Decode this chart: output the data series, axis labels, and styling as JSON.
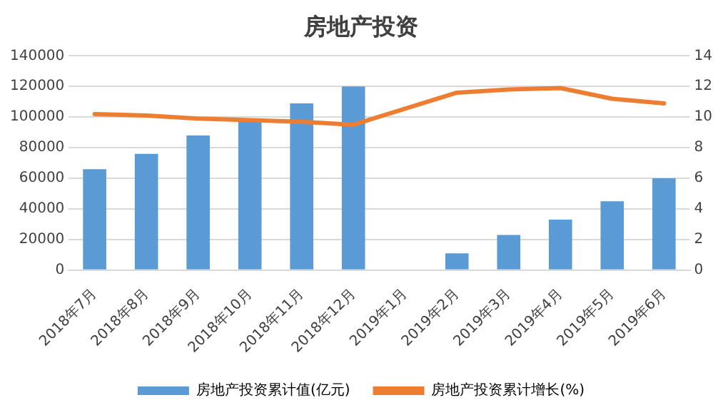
{
  "chart_data": {
    "type": "bar",
    "title": "房地产投资",
    "categories": [
      "2018年7月",
      "2018年8月",
      "2018年9月",
      "2018年10月",
      "2018年11月",
      "2018年12月",
      "2019年1月",
      "2019年2月",
      "2019年3月",
      "2019年4月",
      "2019年5月",
      "2019年6月"
    ],
    "series": [
      {
        "name": "房地产投资累计值(亿元)",
        "color": "#5b9bd5",
        "values": [
          66000,
          76000,
          88000,
          99000,
          109000,
          120000,
          null,
          11000,
          23000,
          33000,
          45000,
          60000
        ]
      },
      {
        "name": "房地产投资累计增长(%)",
        "type": "line",
        "axis": "y2",
        "color": "#ed7d31",
        "values": [
          10.2,
          10.1,
          9.9,
          9.8,
          9.7,
          9.5,
          null,
          11.6,
          11.8,
          11.9,
          11.2,
          10.9
        ]
      }
    ],
    "ylim": [
      0,
      140000
    ],
    "yticks": [
      0,
      20000,
      40000,
      60000,
      80000,
      100000,
      120000,
      140000
    ],
    "y2lim": [
      0,
      14
    ],
    "y2ticks": [
      0,
      2,
      4,
      6,
      8,
      10,
      12,
      14
    ],
    "grid": "y",
    "legend": "bottom",
    "marker": "none",
    "line_style": "solid"
  }
}
